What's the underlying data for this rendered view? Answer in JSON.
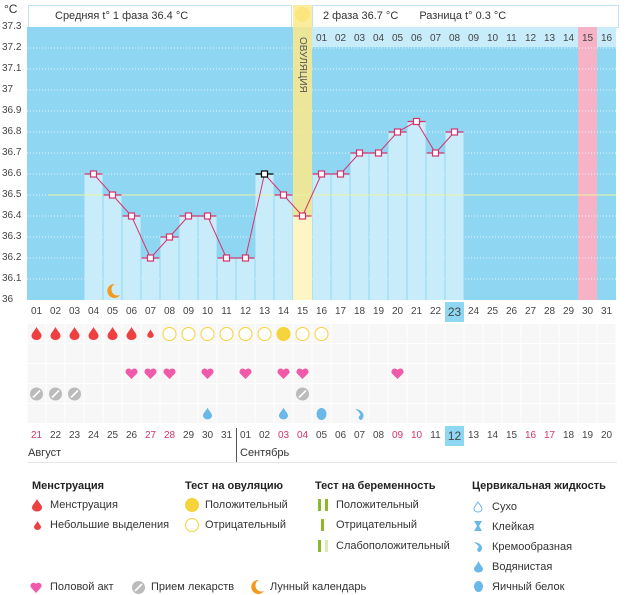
{
  "unit": "°C",
  "header": {
    "phase1_label": "Средняя t° 1 фаза",
    "phase1_value": "36.4 °C",
    "phase2_label": "2 фаза",
    "phase2_value": "36.7 °C",
    "diff_label": "Разница t°",
    "diff_value": "0.3 °C",
    "ovulation_label": "ОВУЛЯЦИЯ"
  },
  "colors": {
    "chart_bg": "#8fd6f2",
    "bar": "#c9ecfb",
    "line": "#d6336c",
    "ovulation": "#fbe98b",
    "period_pred": "#f7b3c6",
    "coverline": "#e8f4a0",
    "menstruation": "#ee4040",
    "heart": "#f05aa8",
    "pill": "#bbbbbb",
    "fluid": "#6ab8e8",
    "weekend": "#d6336c"
  },
  "chart_data": {
    "type": "bar",
    "ylabel": "°C",
    "ylim": [
      36.0,
      37.3
    ],
    "yticks": [
      "37.3",
      "37.2",
      "37.1",
      "37",
      "36.9",
      "36.8",
      "36.7",
      "36.6",
      "36.5",
      "36.4",
      "36.3",
      "36.2",
      "36.1",
      "36"
    ],
    "coverline": 36.5,
    "cycle_days": [
      "01",
      "02",
      "03",
      "04",
      "05",
      "06",
      "07",
      "08",
      "09",
      "10",
      "11",
      "12",
      "13",
      "14",
      "15",
      "16",
      "17",
      "18",
      "19",
      "20",
      "21",
      "22",
      "23",
      "24",
      "25",
      "26",
      "27",
      "28",
      "29",
      "30",
      "31"
    ],
    "temperatures": [
      null,
      null,
      null,
      36.6,
      36.5,
      36.4,
      36.2,
      36.3,
      36.4,
      36.4,
      36.2,
      36.2,
      36.6,
      36.5,
      36.4,
      36.6,
      36.6,
      36.7,
      36.7,
      36.8,
      36.85,
      36.7,
      36.8,
      null,
      null,
      null,
      null,
      null,
      null,
      null,
      null
    ],
    "highlighted_point_day": 13,
    "ovulation_day": 15,
    "today_cycle_day": "23",
    "predicted_period_day": 30,
    "phase2_day_numbers": [
      "01",
      "02",
      "03",
      "04",
      "05",
      "06",
      "07",
      "08",
      "09",
      "10",
      "11",
      "12",
      "13",
      "14",
      "15",
      "16"
    ]
  },
  "markers": {
    "menstruation": [
      1,
      2,
      3,
      4,
      5,
      6
    ],
    "spotting": [
      7
    ],
    "ovulation_test_negative": [
      8,
      9,
      10,
      11,
      12,
      13,
      15,
      16
    ],
    "ovulation_test_positive": [
      14
    ],
    "intercourse": [
      6,
      7,
      8,
      10,
      12,
      14,
      15,
      20
    ],
    "medication": [
      1,
      2,
      3,
      15
    ],
    "fluid_watery": [
      10,
      14
    ],
    "fluid_eggwhite": [
      16
    ],
    "fluid_creamy": [
      18
    ],
    "moon": [
      5
    ]
  },
  "dates": [
    "21",
    "22",
    "23",
    "24",
    "25",
    "26",
    "27",
    "28",
    "29",
    "30",
    "31",
    "01",
    "02",
    "03",
    "04",
    "05",
    "06",
    "07",
    "08",
    "09",
    "10",
    "11",
    "12",
    "13",
    "14",
    "15",
    "16",
    "17",
    "18",
    "19",
    "20"
  ],
  "weekend_date_indices": [
    0,
    6,
    7,
    13,
    14,
    19,
    20,
    26,
    27
  ],
  "today_date_index": 22,
  "months": {
    "first": "Август",
    "second": "Сентябрь"
  },
  "legend": {
    "menstruation_title": "Менструация",
    "menstruation": "Менструация",
    "spotting": "Небольшие выделения",
    "ovtest_title": "Тест на овуляцию",
    "ovtest_pos": "Положительный",
    "ovtest_neg": "Отрицательный",
    "preg_title": "Тест на беременность",
    "preg_pos": "Положительный",
    "preg_neg": "Отрицательный",
    "preg_weak": "Слабоположительный",
    "fluid_title": "Цервикальная жидкость",
    "fluid_dry": "Сухо",
    "fluid_sticky": "Клейкая",
    "fluid_creamy": "Кремообразная",
    "fluid_watery": "Водянистая",
    "fluid_egg": "Яичный белок",
    "intercourse": "Половой акт",
    "medication": "Прием лекарств",
    "moon": "Лунный календарь"
  }
}
